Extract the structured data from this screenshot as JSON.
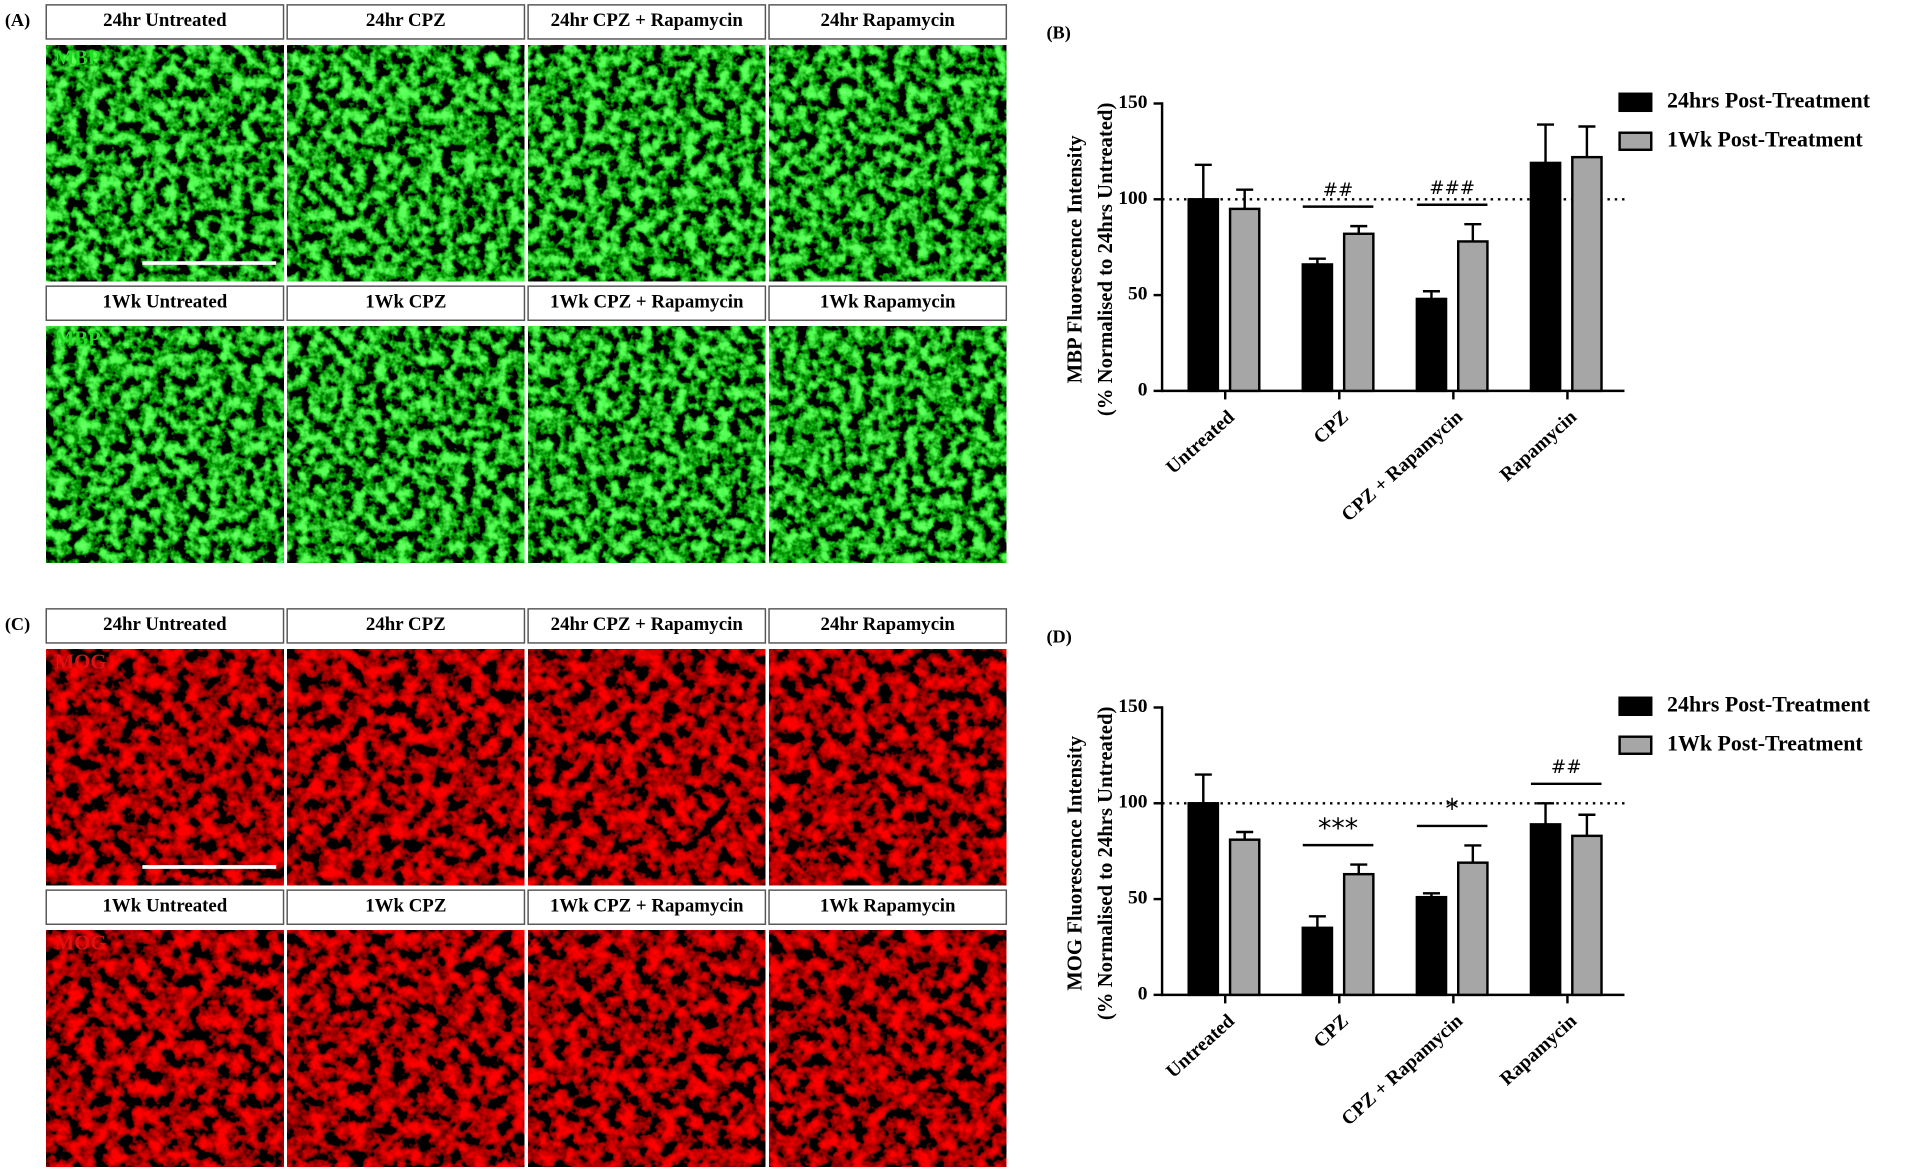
{
  "image_panels": [
    {
      "label": "(A)",
      "stain": "MBP",
      "titles": [
        "24hr Untreated",
        "24hr CPZ",
        "24hr CPZ + Rapamycin",
        "24hr Rapamycin",
        "1Wk Untreated",
        "1Wk CPZ",
        "1Wk CPZ + Rapamycin",
        "1Wk Rapamycin"
      ]
    },
    {
      "label": "(C)",
      "stain": "MOG",
      "titles": [
        "24hr Untreated",
        "24hr CPZ",
        "24hr CPZ + Rapamycin",
        "24hr Rapamycin",
        "1Wk Untreated",
        "1Wk CPZ",
        "1Wk CPZ + Rapamycin",
        "1Wk Rapamycin"
      ]
    }
  ],
  "chart_data": [
    {
      "type": "bar",
      "panel_label": "(B)",
      "y_label": [
        "MBP Fluorescence Intensity",
        "(% Normalised to 24hrs Untreated)"
      ],
      "categories": [
        "Untreated",
        "CPZ",
        "CPZ + Rapamycin",
        "Rapamycin"
      ],
      "series": [
        {
          "name": "24hrs Post-Treatment",
          "color": "#000000",
          "values": [
            100,
            66,
            48,
            119
          ],
          "errors": [
            18,
            3,
            4,
            20
          ]
        },
        {
          "name": "1Wk Post-Treatment",
          "color": "#a6a6a6",
          "values": [
            95,
            82,
            78,
            122
          ],
          "errors": [
            10,
            4,
            9,
            16
          ]
        }
      ],
      "annotations": [
        null,
        "##",
        "###",
        null
      ],
      "reference_line": 100,
      "ylim": [
        0,
        150
      ],
      "yticks": [
        0,
        50,
        100,
        150
      ]
    },
    {
      "type": "bar",
      "panel_label": "(D)",
      "y_label": [
        "MOG Fluorescence Intensity",
        "(% Normalised to 24hrs Untreated)"
      ],
      "categories": [
        "Untreated",
        "CPZ",
        "CPZ + Rapamycin",
        "Rapamycin"
      ],
      "series": [
        {
          "name": "24hrs Post-Treatment",
          "color": "#000000",
          "values": [
            100,
            35,
            51,
            89
          ],
          "errors": [
            15,
            6,
            2,
            11
          ]
        },
        {
          "name": "1Wk Post-Treatment",
          "color": "#a6a6a6",
          "values": [
            81,
            63,
            69,
            83
          ],
          "errors": [
            4,
            5,
            9,
            11
          ]
        }
      ],
      "annotations": [
        null,
        "***",
        "*",
        "##"
      ],
      "reference_line": 100,
      "ylim": [
        0,
        150
      ],
      "yticks": [
        0,
        50,
        100,
        150
      ]
    }
  ]
}
